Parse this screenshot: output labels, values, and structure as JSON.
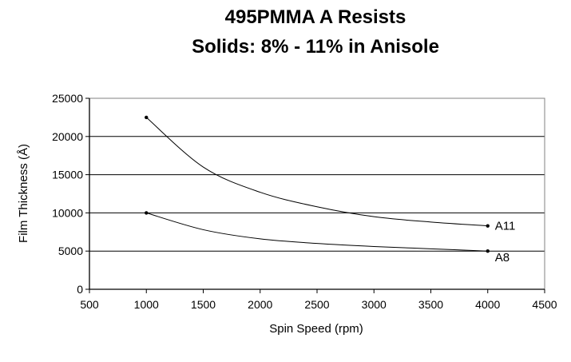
{
  "chart_data": {
    "type": "line",
    "title": "495PMMA A Resists",
    "subtitle": "Solids: 8% - 11% in Anisole",
    "xlabel": "Spin Speed (rpm)",
    "ylabel": "Film Thickness (Å)",
    "xlim": [
      500,
      4500
    ],
    "ylim": [
      0,
      25000
    ],
    "xticks": [
      500,
      1000,
      1500,
      2000,
      2500,
      3000,
      3500,
      4000,
      4500
    ],
    "yticks": [
      0,
      5000,
      10000,
      15000,
      20000,
      25000
    ],
    "grid": "horizontal",
    "series": [
      {
        "name": "A11",
        "color": "#000000",
        "x": [
          1000,
          1500,
          2000,
          2500,
          3000,
          3500,
          4000
        ],
        "y": [
          22500,
          16000,
          12700,
          10800,
          9500,
          8800,
          8300
        ]
      },
      {
        "name": "A8",
        "color": "#000000",
        "x": [
          1000,
          1500,
          2000,
          2500,
          3000,
          3500,
          4000
        ],
        "y": [
          10000,
          7800,
          6600,
          6000,
          5600,
          5300,
          5000
        ]
      }
    ]
  }
}
